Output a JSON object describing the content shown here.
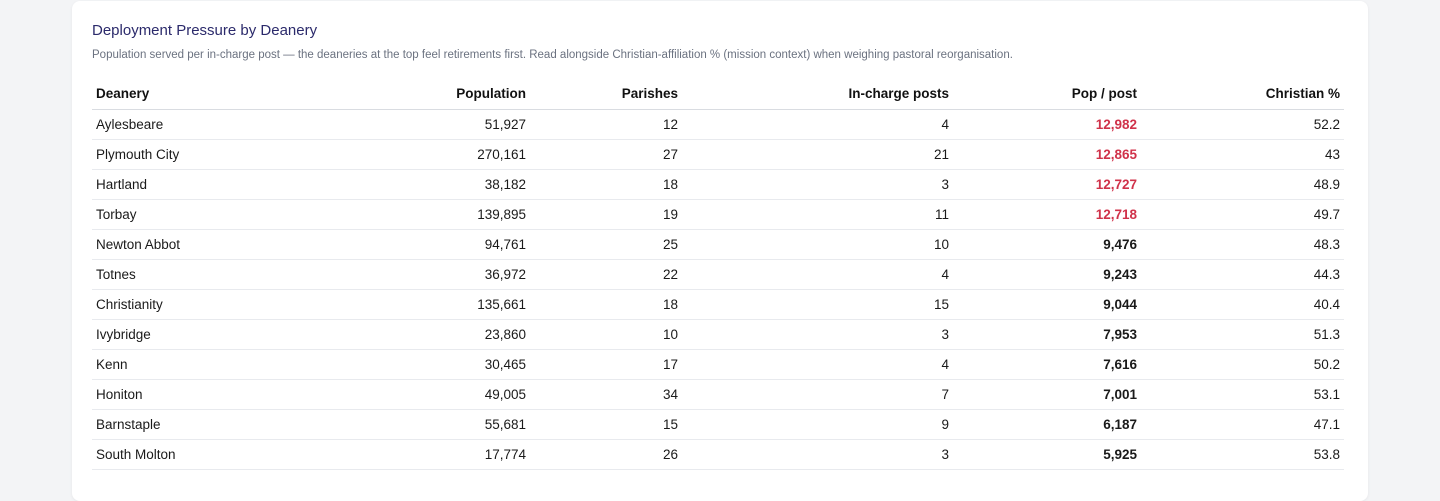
{
  "card": {
    "title": "Deployment Pressure by Deanery",
    "subtitle": "Population served per in-charge post — the deaneries at the top feel retirements first. Read alongside Christian-affiliation % (mission context) when weighing pastoral reorganisation."
  },
  "table": {
    "columns": [
      "Deanery",
      "Population",
      "Parishes",
      "In-charge posts",
      "Pop / post",
      "Christian %"
    ],
    "rows": [
      {
        "deanery": "Aylesbeare",
        "population": "51,927",
        "parishes": "12",
        "posts": "4",
        "pop_post": "12,982",
        "christian": "52.2",
        "high": true
      },
      {
        "deanery": "Plymouth City",
        "population": "270,161",
        "parishes": "27",
        "posts": "21",
        "pop_post": "12,865",
        "christian": "43",
        "high": true
      },
      {
        "deanery": "Hartland",
        "population": "38,182",
        "parishes": "18",
        "posts": "3",
        "pop_post": "12,727",
        "christian": "48.9",
        "high": true
      },
      {
        "deanery": "Torbay",
        "population": "139,895",
        "parishes": "19",
        "posts": "11",
        "pop_post": "12,718",
        "christian": "49.7",
        "high": true
      },
      {
        "deanery": "Newton Abbot",
        "population": "94,761",
        "parishes": "25",
        "posts": "10",
        "pop_post": "9,476",
        "christian": "48.3",
        "high": false
      },
      {
        "deanery": "Totnes",
        "population": "36,972",
        "parishes": "22",
        "posts": "4",
        "pop_post": "9,243",
        "christian": "44.3",
        "high": false
      },
      {
        "deanery": "Christianity",
        "population": "135,661",
        "parishes": "18",
        "posts": "15",
        "pop_post": "9,044",
        "christian": "40.4",
        "high": false
      },
      {
        "deanery": "Ivybridge",
        "population": "23,860",
        "parishes": "10",
        "posts": "3",
        "pop_post": "7,953",
        "christian": "51.3",
        "high": false
      },
      {
        "deanery": "Kenn",
        "population": "30,465",
        "parishes": "17",
        "posts": "4",
        "pop_post": "7,616",
        "christian": "50.2",
        "high": false
      },
      {
        "deanery": "Honiton",
        "population": "49,005",
        "parishes": "34",
        "posts": "7",
        "pop_post": "7,001",
        "christian": "53.1",
        "high": false
      },
      {
        "deanery": "Barnstaple",
        "population": "55,681",
        "parishes": "15",
        "posts": "9",
        "pop_post": "6,187",
        "christian": "47.1",
        "high": false
      },
      {
        "deanery": "South Molton",
        "population": "17,774",
        "parishes": "26",
        "posts": "3",
        "pop_post": "5,925",
        "christian": "53.8",
        "high": false
      }
    ]
  },
  "colors": {
    "title": "#2b2a6b",
    "high_pressure": "#d0324a",
    "subtitle": "#6b7280"
  }
}
